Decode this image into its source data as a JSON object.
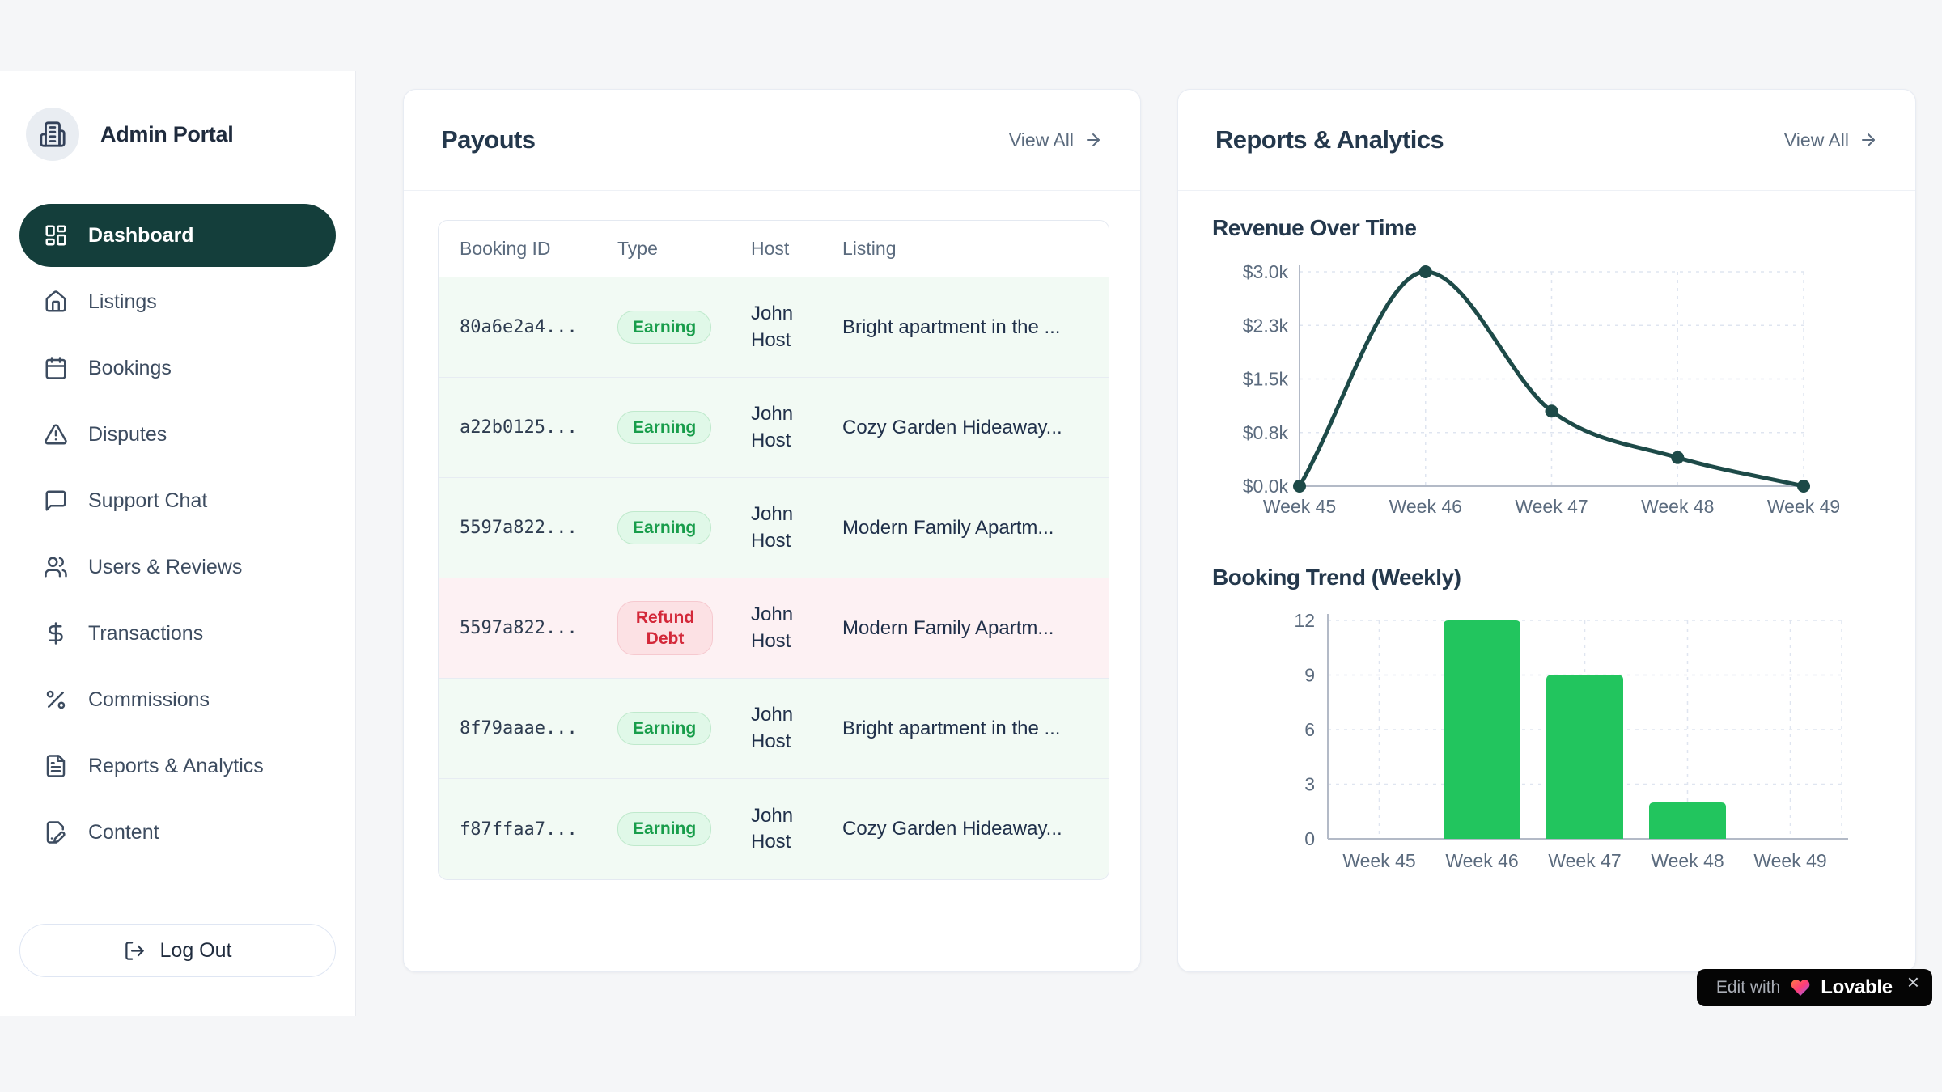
{
  "sidebar": {
    "brand": "Admin Portal",
    "items": [
      {
        "label": "Dashboard",
        "icon": "dashboard",
        "active": true
      },
      {
        "label": "Listings",
        "icon": "home",
        "active": false
      },
      {
        "label": "Bookings",
        "icon": "calendar",
        "active": false
      },
      {
        "label": "Disputes",
        "icon": "alert-triangle",
        "active": false
      },
      {
        "label": "Support Chat",
        "icon": "chat-bubble",
        "active": false
      },
      {
        "label": "Users & Reviews",
        "icon": "users",
        "active": false
      },
      {
        "label": "Transactions",
        "icon": "dollar",
        "active": false
      },
      {
        "label": "Commissions",
        "icon": "percent",
        "active": false
      },
      {
        "label": "Reports & Analytics",
        "icon": "file-text",
        "active": false
      },
      {
        "label": "Content",
        "icon": "file-pen",
        "active": false
      }
    ],
    "logout_label": "Log Out"
  },
  "payouts": {
    "title": "Payouts",
    "view_all_label": "View All",
    "table": {
      "columns": [
        "Booking ID",
        "Type",
        "Host",
        "Listing"
      ],
      "rows": [
        {
          "booking_id": "80a6e2a4...",
          "type": "Earning",
          "host": "John Host",
          "listing": "Bright apartment in the ...",
          "tone": "earning"
        },
        {
          "booking_id": "a22b0125...",
          "type": "Earning",
          "host": "John Host",
          "listing": "Cozy Garden Hideaway...",
          "tone": "earning"
        },
        {
          "booking_id": "5597a822...",
          "type": "Earning",
          "host": "John Host",
          "listing": "Modern Family Apartm...",
          "tone": "earning"
        },
        {
          "booking_id": "5597a822...",
          "type": "Refund Debt",
          "host": "John Host",
          "listing": "Modern Family Apartm...",
          "tone": "refund"
        },
        {
          "booking_id": "8f79aaae...",
          "type": "Earning",
          "host": "John Host",
          "listing": "Bright apartment in the ...",
          "tone": "earning"
        },
        {
          "booking_id": "f87ffaa7...",
          "type": "Earning",
          "host": "John Host",
          "listing": "Cozy Garden Hideaway...",
          "tone": "earning"
        }
      ]
    }
  },
  "reports": {
    "title": "Reports & Analytics",
    "view_all_label": "View All"
  },
  "chart_data": [
    {
      "type": "line",
      "title": "Revenue Over Time",
      "categories": [
        "Week 45",
        "Week 46",
        "Week 47",
        "Week 48",
        "Week 49"
      ],
      "values": [
        0,
        3000,
        1050,
        400,
        0
      ],
      "y_tick_labels": [
        "$0.0k",
        "$0.8k",
        "$1.5k",
        "$2.3k",
        "$3.0k"
      ],
      "ylim": [
        0,
        3000
      ],
      "xlabel": "",
      "ylabel": "",
      "grid": "dashed",
      "legend": "none",
      "line_color": "#1d4a48"
    },
    {
      "type": "bar",
      "title": "Booking Trend (Weekly)",
      "categories": [
        "Week 45",
        "Week 46",
        "Week 47",
        "Week 48",
        "Week 49"
      ],
      "values": [
        0,
        12,
        9,
        2,
        0
      ],
      "y_tick_labels": [
        "0",
        "3",
        "6",
        "9",
        "12"
      ],
      "ylim": [
        0,
        12
      ],
      "xlabel": "",
      "ylabel": "",
      "grid": "dashed",
      "legend": "none",
      "bar_color": "#22c55e"
    }
  ],
  "lovable_badge": {
    "prefix": "Edit with",
    "brand": "Lovable",
    "close": "×"
  },
  "colors": {
    "page_background": "#f5f6f8",
    "active_nav": "#143e3b",
    "line_accent": "#1d4a48",
    "bar_accent": "#22c55e",
    "earning_text": "#189d4b",
    "earning_bg": "#e0f8e8",
    "refund_text": "#d32839",
    "refund_bg": "#fce1e4",
    "earning_row": "#f2faf4",
    "refund_row": "#fdf1f3",
    "muted_text": "#5b6b7e",
    "badge_black": "#050505"
  }
}
